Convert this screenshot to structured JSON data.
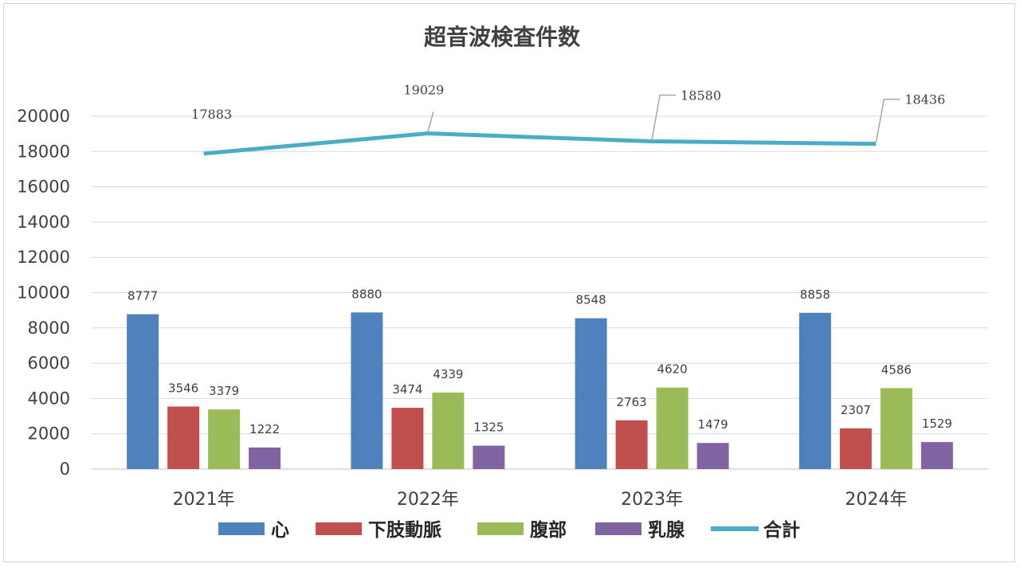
{
  "chart_data": {
    "type": "bar",
    "title": "超音波検査件数",
    "categories": [
      "2021年",
      "2022年",
      "2023年",
      "2024年"
    ],
    "ylim": [
      0,
      20000
    ],
    "yticks": [
      0,
      2000,
      4000,
      6000,
      8000,
      10000,
      12000,
      14000,
      16000,
      18000,
      20000
    ],
    "grid": true,
    "legend_position": "bottom",
    "series": [
      {
        "name": "心",
        "kind": "bar",
        "color": "#4F81BD",
        "values": [
          8777,
          8880,
          8548,
          8858
        ]
      },
      {
        "name": "下肢動脈",
        "kind": "bar",
        "color": "#C0504D",
        "values": [
          3546,
          3474,
          2763,
          2307
        ]
      },
      {
        "name": "腹部",
        "kind": "bar",
        "color": "#9BBB59",
        "values": [
          3379,
          4339,
          4620,
          4586
        ]
      },
      {
        "name": "乳腺",
        "kind": "bar",
        "color": "#8064A2",
        "values": [
          1222,
          1325,
          1479,
          1529
        ]
      },
      {
        "name": "合計",
        "kind": "line",
        "color": "#4BACC6",
        "values": [
          17883,
          19029,
          18580,
          18436
        ]
      }
    ]
  }
}
